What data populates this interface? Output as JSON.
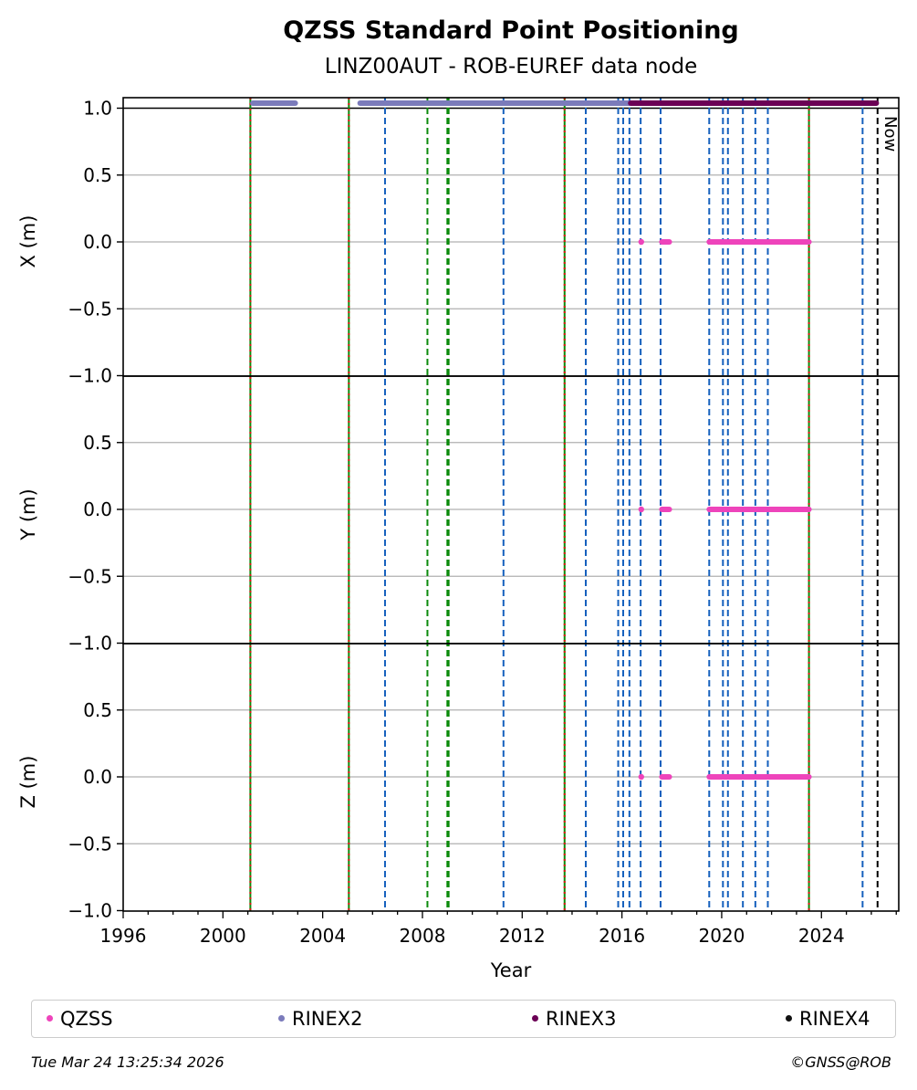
{
  "chart_data": {
    "type": "scatter",
    "title": "QZSS Standard Point Positioning",
    "subtitle": "LINZ00AUT - ROB-EUREF data node",
    "xlabel": "Year",
    "xlim": [
      1996,
      2027.1
    ],
    "x_ticks": [
      "1996",
      "2000",
      "2004",
      "2008",
      "2012",
      "2016",
      "2020",
      "2024"
    ],
    "panels": [
      {
        "ylabel": "X (m)",
        "ylim": [
          -1.0,
          1.08
        ],
        "y_ticks": [
          "1.0",
          "0.5",
          "0.0",
          "−0.5",
          "−1.0"
        ]
      },
      {
        "ylabel": "Y (m)",
        "ylim": [
          -1.0,
          1.0
        ],
        "y_ticks": [
          "0.5",
          "0.0",
          "−0.5",
          "−1.0"
        ]
      },
      {
        "ylabel": "Z (m)",
        "ylim": [
          -1.0,
          1.0
        ],
        "y_ticks": [
          "0.5",
          "0.0",
          "−0.5",
          "−1.0"
        ]
      }
    ],
    "series": [
      {
        "name": "QZSS",
        "color": "#ee44bb",
        "segments": [
          [
            2016.75,
            2016.8
          ],
          [
            2017.6,
            2017.9
          ],
          [
            2019.5,
            2023.5
          ]
        ],
        "value": 0.0
      },
      {
        "name": "RINEX2",
        "color": "#7b7bbb",
        "segments": [
          [
            2001.2,
            2002.9
          ],
          [
            2005.5,
            2016.3
          ]
        ]
      },
      {
        "name": "RINEX3",
        "color": "#6b0055",
        "segments": [
          [
            2016.35,
            2026.2
          ]
        ]
      },
      {
        "name": "RINEX4",
        "color": "#111111",
        "segments": []
      }
    ],
    "event_lines": [
      {
        "year": 2001.1,
        "style": "green-red"
      },
      {
        "year": 2005.05,
        "style": "green-red"
      },
      {
        "year": 2006.5,
        "style": "blue"
      },
      {
        "year": 2008.2,
        "style": "green"
      },
      {
        "year": 2009.0,
        "style": "green"
      },
      {
        "year": 2009.05,
        "style": "green"
      },
      {
        "year": 2011.25,
        "style": "blue"
      },
      {
        "year": 2013.7,
        "style": "green-red"
      },
      {
        "year": 2014.55,
        "style": "blue"
      },
      {
        "year": 2015.85,
        "style": "blue"
      },
      {
        "year": 2016.05,
        "style": "blue"
      },
      {
        "year": 2016.3,
        "style": "blue"
      },
      {
        "year": 2016.75,
        "style": "blue"
      },
      {
        "year": 2017.55,
        "style": "blue"
      },
      {
        "year": 2019.5,
        "style": "blue"
      },
      {
        "year": 2020.05,
        "style": "blue"
      },
      {
        "year": 2020.25,
        "style": "blue"
      },
      {
        "year": 2020.85,
        "style": "blue"
      },
      {
        "year": 2021.35,
        "style": "blue"
      },
      {
        "year": 2021.85,
        "style": "blue"
      },
      {
        "year": 2023.5,
        "style": "green-red"
      },
      {
        "year": 2025.65,
        "style": "blue"
      },
      {
        "year": 2026.25,
        "style": "now"
      }
    ],
    "now_label": "Now",
    "line_colors": {
      "blue": "#1560bd",
      "green": "#0a8a0a",
      "red": "#dd1111",
      "now": "#000000"
    },
    "legend_placement": "bottom",
    "grid": true
  },
  "footer": {
    "timestamp": "Tue Mar 24 13:25:34 2026",
    "credit": "©GNSS@ROB"
  }
}
